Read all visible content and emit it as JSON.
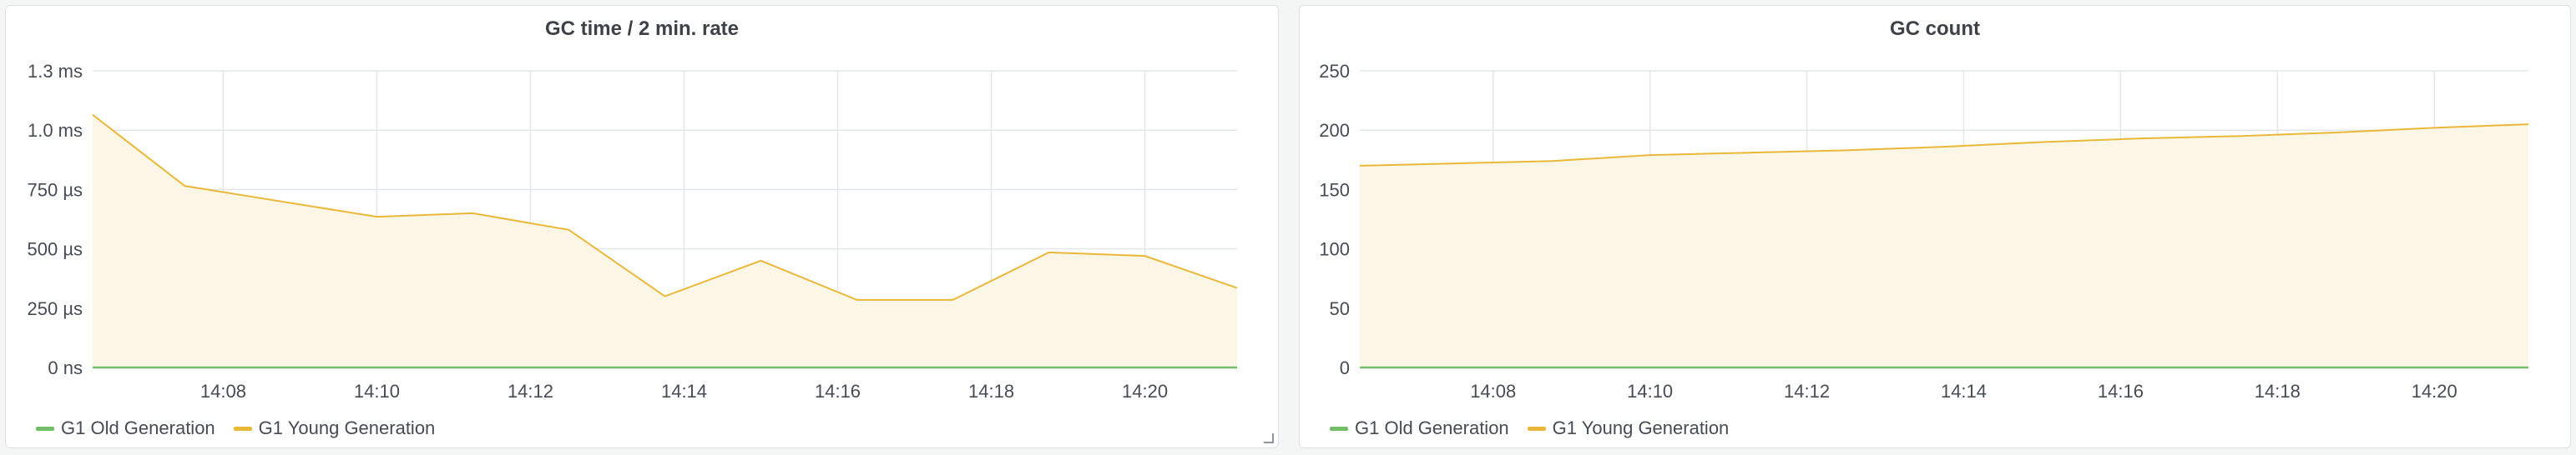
{
  "colors": {
    "old_generation": "#73bf69",
    "young_generation": "#eab839",
    "young_fill": "#fcf6e6",
    "grid": "#e4e7ea"
  },
  "chart_data": [
    {
      "type": "area",
      "title": "GC time / 2 min. rate",
      "xlabel": "",
      "ylabel": "",
      "x_ticks": [
        "14:08",
        "14:10",
        "14:12",
        "14:14",
        "14:16",
        "14:18",
        "14:20"
      ],
      "x_tick_minutes": [
        8,
        10,
        12,
        14,
        16,
        18,
        20
      ],
      "xlim": [
        6.3,
        21.2
      ],
      "y_ticks": [
        "0 ns",
        "250 µs",
        "500 µs",
        "750 µs",
        "1.0 ms",
        "1.3 ms"
      ],
      "y_tick_values": [
        0,
        250,
        500,
        750,
        1000,
        1250
      ],
      "ylim": [
        0,
        1250
      ],
      "y_unit": "µs",
      "grid": true,
      "legend_position": "bottom-left",
      "series": [
        {
          "name": "G1 Old Generation",
          "color_key": "old_generation",
          "x": [
            6.3,
            21.2
          ],
          "values": [
            0,
            0
          ]
        },
        {
          "name": "G1 Young Generation",
          "color_key": "young_generation",
          "x": [
            6.3,
            7.5,
            10.0,
            11.25,
            12.5,
            13.75,
            15.0,
            16.25,
            17.5,
            18.75,
            20.0,
            21.2
          ],
          "values": [
            1065,
            765,
            635,
            650,
            580,
            300,
            450,
            285,
            285,
            485,
            470,
            335
          ]
        }
      ]
    },
    {
      "type": "area",
      "title": "GC count",
      "xlabel": "",
      "ylabel": "",
      "x_ticks": [
        "14:08",
        "14:10",
        "14:12",
        "14:14",
        "14:16",
        "14:18",
        "14:20"
      ],
      "x_tick_minutes": [
        8,
        10,
        12,
        14,
        16,
        18,
        20
      ],
      "xlim": [
        6.3,
        21.2
      ],
      "y_ticks": [
        "0",
        "50",
        "100",
        "150",
        "200",
        "250"
      ],
      "y_tick_values": [
        0,
        50,
        100,
        150,
        200,
        250
      ],
      "ylim": [
        0,
        250
      ],
      "grid": true,
      "legend_position": "bottom-left",
      "series": [
        {
          "name": "G1 Old Generation",
          "color_key": "old_generation",
          "x": [
            6.3,
            21.2
          ],
          "values": [
            0,
            0
          ]
        },
        {
          "name": "G1 Young Generation",
          "color_key": "young_generation",
          "x": [
            6.3,
            7.5,
            8.75,
            10.0,
            11.25,
            12.5,
            13.75,
            15.0,
            16.25,
            17.5,
            18.75,
            20.0,
            21.2
          ],
          "values": [
            170,
            172,
            174,
            179,
            181,
            183,
            186,
            190,
            193,
            195,
            198,
            202,
            205
          ]
        }
      ]
    }
  ]
}
